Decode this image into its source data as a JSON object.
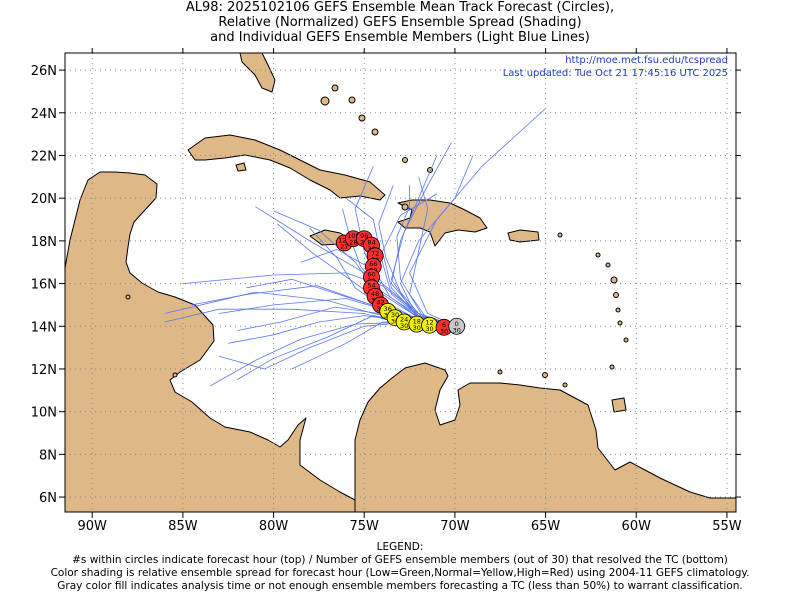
{
  "title": {
    "line1": "AL98: 2025102106 GEFS Ensemble Mean Track Forecast (Circles),",
    "line2": "Relative (Normalized) GEFS Ensemble Spread (Shading)",
    "line3": "and Individual GEFS Ensemble Members (Light Blue Lines)"
  },
  "source_url": "http://moe.met.fsu.edu/tcspread",
  "last_updated": "Last updated: Tue Oct 21 17:45:16 UTC 2025",
  "axes": {
    "x_ticks": [
      {
        "lon": -90,
        "label": "90W"
      },
      {
        "lon": -85,
        "label": "85W"
      },
      {
        "lon": -80,
        "label": "80W"
      },
      {
        "lon": -75,
        "label": "75W"
      },
      {
        "lon": -70,
        "label": "70W"
      },
      {
        "lon": -65,
        "label": "65W"
      },
      {
        "lon": -60,
        "label": "60W"
      },
      {
        "lon": -55,
        "label": "55W"
      }
    ],
    "y_ticks": [
      {
        "lat": 6,
        "label": "6N"
      },
      {
        "lat": 8,
        "label": "8N"
      },
      {
        "lat": 10,
        "label": "10N"
      },
      {
        "lat": 12,
        "label": "12N"
      },
      {
        "lat": 14,
        "label": "14N"
      },
      {
        "lat": 16,
        "label": "16N"
      },
      {
        "lat": 18,
        "label": "18N"
      },
      {
        "lat": 20,
        "label": "20N"
      },
      {
        "lat": 22,
        "label": "22N"
      },
      {
        "lat": 24,
        "label": "24N"
      },
      {
        "lat": 26,
        "label": "26N"
      }
    ],
    "lon_range": [
      -91.5,
      -54.5
    ],
    "lat_range": [
      5.3,
      26.8
    ],
    "grid": true
  },
  "colors": {
    "land": "#DEB887",
    "ocean": "#FFFFFF",
    "member_tracks": "#5A78F0",
    "spread_high": "#FF2E2E",
    "spread_normal": "#F0F000",
    "spread_low": "#33CC33",
    "analysis_gray": "#C8C8C8",
    "text_link": "#1A3CC4"
  },
  "mean_track": [
    {
      "hour": "0",
      "members": "30",
      "lon": -69.9,
      "lat": 14.0,
      "class": "gray"
    },
    {
      "hour": "6",
      "members": "30",
      "lon": -70.6,
      "lat": 13.95,
      "class": "high"
    },
    {
      "hour": "12",
      "members": "30",
      "lon": -71.4,
      "lat": 14.05,
      "class": "normal"
    },
    {
      "hour": "18",
      "members": "30",
      "lon": -72.1,
      "lat": 14.1,
      "class": "normal"
    },
    {
      "hour": "24",
      "members": "30",
      "lon": -72.8,
      "lat": 14.2,
      "class": "normal"
    },
    {
      "hour": "30",
      "members": "30",
      "lon": -73.3,
      "lat": 14.4,
      "class": "normal"
    },
    {
      "hour": "36",
      "members": "30",
      "lon": -73.7,
      "lat": 14.7,
      "class": "normal"
    },
    {
      "hour": "42",
      "members": "30",
      "lon": -74.1,
      "lat": 15.0,
      "class": "high"
    },
    {
      "hour": "48",
      "members": "30",
      "lon": -74.4,
      "lat": 15.4,
      "class": "high"
    },
    {
      "hour": "54",
      "members": "30",
      "lon": -74.6,
      "lat": 15.8,
      "class": "high"
    },
    {
      "hour": "60",
      "members": "30",
      "lon": -74.6,
      "lat": 16.3,
      "class": "high"
    },
    {
      "hour": "66",
      "members": "30",
      "lon": -74.5,
      "lat": 16.8,
      "class": "high"
    },
    {
      "hour": "72",
      "members": "30",
      "lon": -74.4,
      "lat": 17.3,
      "class": "high"
    },
    {
      "hour": "84",
      "members": "30",
      "lon": -74.6,
      "lat": 17.8,
      "class": "high"
    },
    {
      "hour": "96",
      "members": "29",
      "lon": -75.0,
      "lat": 18.1,
      "class": "high"
    },
    {
      "hour": "108",
      "members": "28",
      "lon": -75.6,
      "lat": 18.1,
      "class": "high"
    },
    {
      "hour": "120",
      "members": "27",
      "lon": -76.1,
      "lat": 17.9,
      "class": "high"
    }
  ],
  "legend": {
    "heading": "LEGEND:",
    "line1": "#s within circles indicate forecast hour (top) / Number of GEFS ensemble members (out of 30) that resolved the TC (bottom)",
    "line2": "Color shading is relative ensemble spread for forecast hour (Low=Green,Normal=Yellow,High=Red) using 2004-11 GEFS climatology.",
    "line3": "Gray color fill indicates analysis time or not enough ensemble members forecasting a TC (less than 50%) to warrant classification."
  }
}
